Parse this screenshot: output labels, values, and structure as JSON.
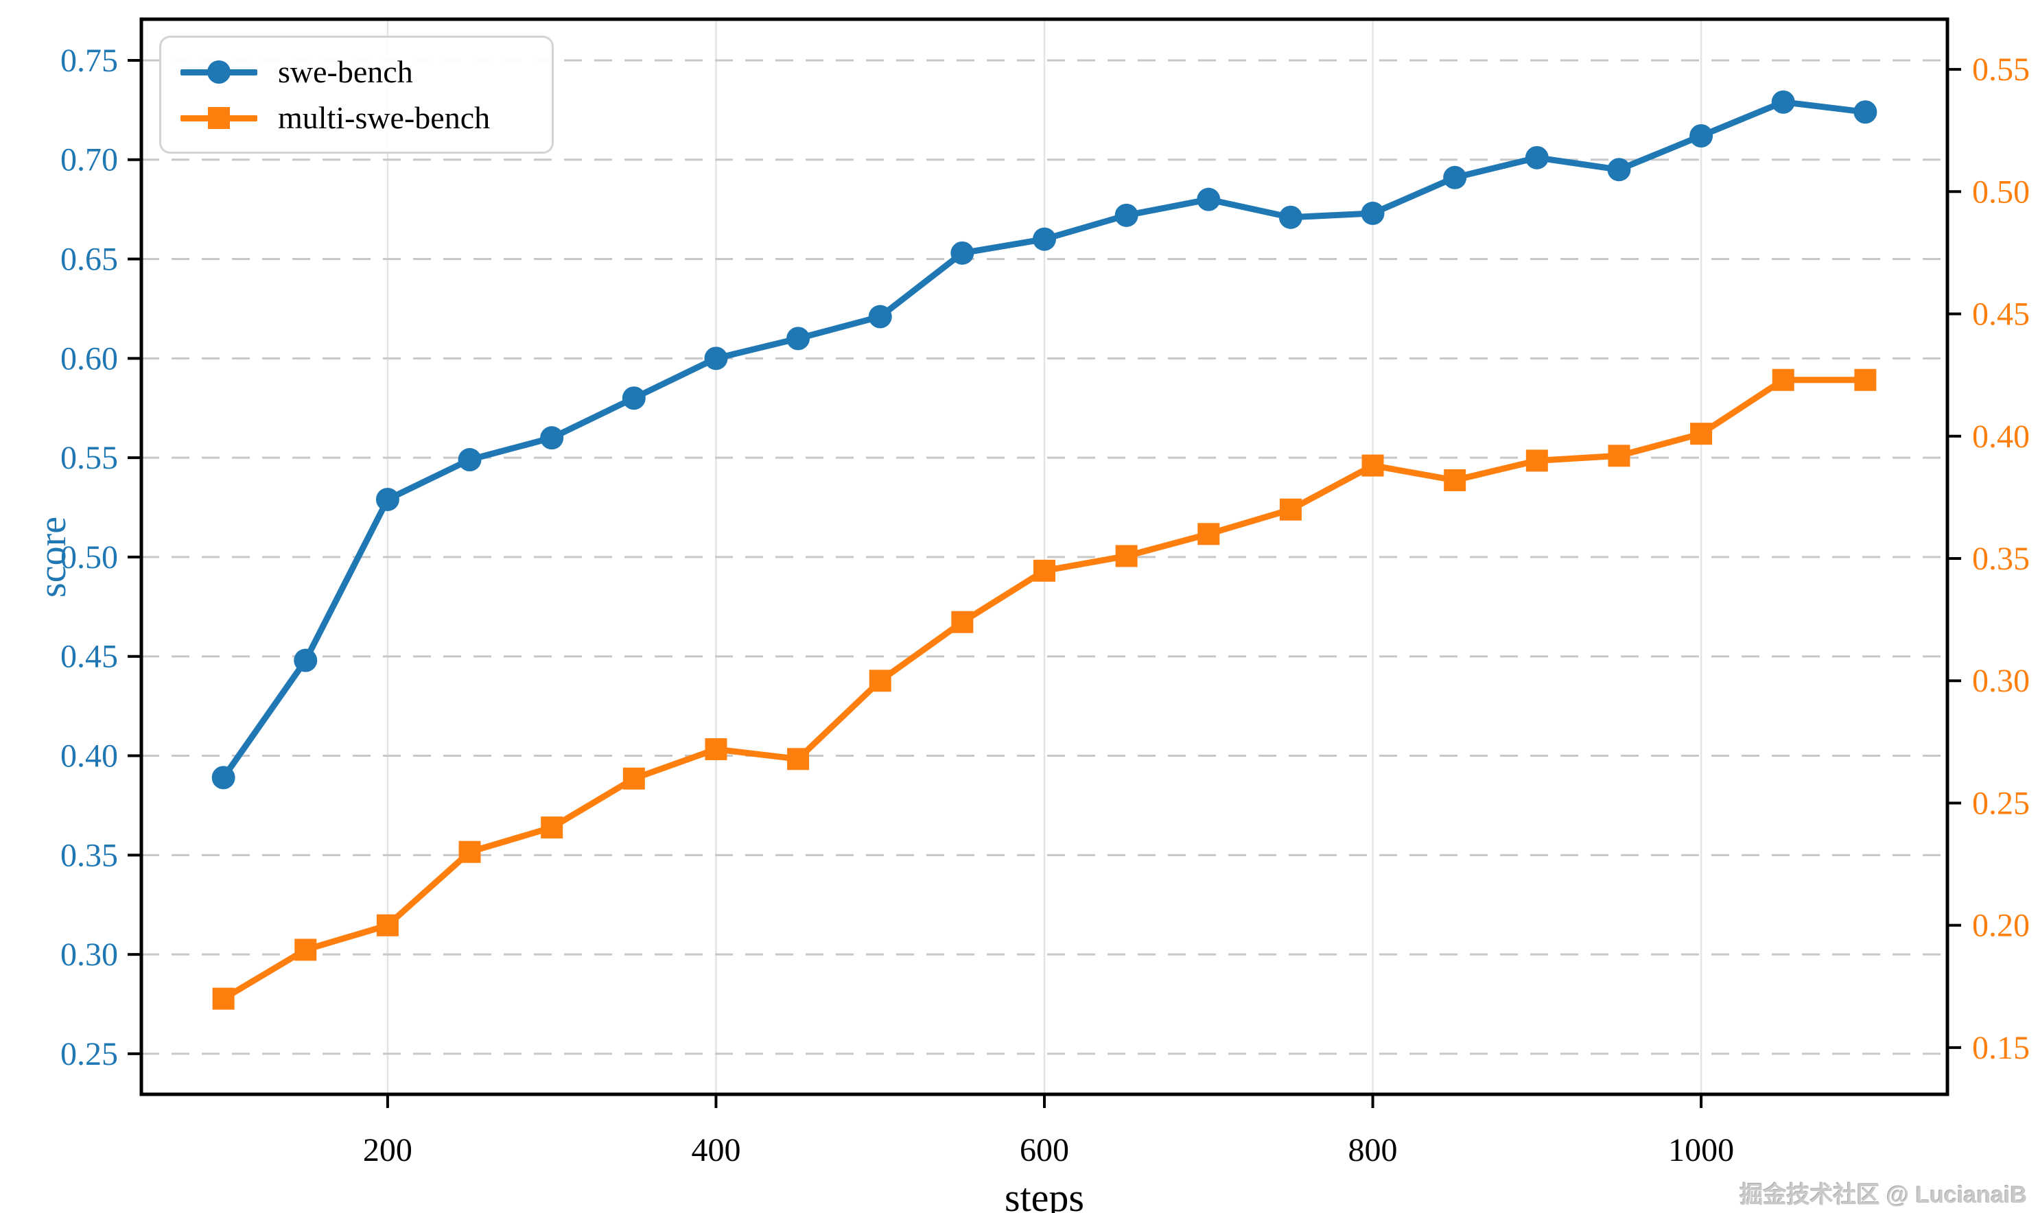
{
  "watermark": "掘金技术社区 @ LucianaiB",
  "colors": {
    "swe_bench": "#1f77b4",
    "multi_swe_bench": "#ff7f0e",
    "h_gridline": "#c8c8c8",
    "v_gridline": "#e4e4e4",
    "spine": "#000000",
    "tick": "#000000",
    "x_tick_label": "#000000",
    "watermark_text": "#c9c9c9"
  },
  "chart_data": {
    "type": "line",
    "title": "",
    "xlabel": "steps",
    "ylabel": "score",
    "grid": true,
    "x": [
      100,
      150,
      200,
      250,
      300,
      350,
      400,
      450,
      500,
      550,
      600,
      650,
      700,
      750,
      800,
      850,
      900,
      950,
      1000,
      1050,
      1100
    ],
    "series": [
      {
        "name": "swe-bench",
        "axis": "left",
        "color": "#1f77b4",
        "marker": "circle",
        "values": [
          0.389,
          0.448,
          0.529,
          0.549,
          0.56,
          0.58,
          0.6,
          0.61,
          0.621,
          0.653,
          0.66,
          0.672,
          0.68,
          0.671,
          0.673,
          0.691,
          0.701,
          0.695,
          0.712,
          0.729,
          0.724
        ]
      },
      {
        "name": "multi-swe-bench",
        "axis": "right",
        "color": "#ff7f0e",
        "marker": "square",
        "values": [
          0.17,
          0.19,
          0.2,
          0.23,
          0.24,
          0.26,
          0.272,
          0.268,
          0.3,
          0.324,
          0.345,
          0.351,
          0.36,
          0.37,
          0.388,
          0.382,
          0.39,
          0.392,
          0.401,
          0.423,
          0.423
        ]
      }
    ],
    "x_axis": {
      "ticks": [
        200,
        400,
        600,
        800,
        1000
      ],
      "range": [
        50,
        1150
      ]
    },
    "left_axis": {
      "ticks": [
        0.25,
        0.3,
        0.35,
        0.4,
        0.45,
        0.5,
        0.55,
        0.6,
        0.65,
        0.7,
        0.75
      ],
      "range": [
        0.2296,
        0.7707
      ],
      "color": "#1f77b4"
    },
    "right_axis": {
      "ticks": [
        0.15,
        0.2,
        0.25,
        0.3,
        0.35,
        0.4,
        0.45,
        0.5,
        0.55
      ],
      "range": [
        0.1309,
        0.5705
      ],
      "color": "#ff7f0e"
    },
    "legend": {
      "position": "top-left",
      "entries": [
        "swe-bench",
        "multi-swe-bench"
      ]
    }
  }
}
